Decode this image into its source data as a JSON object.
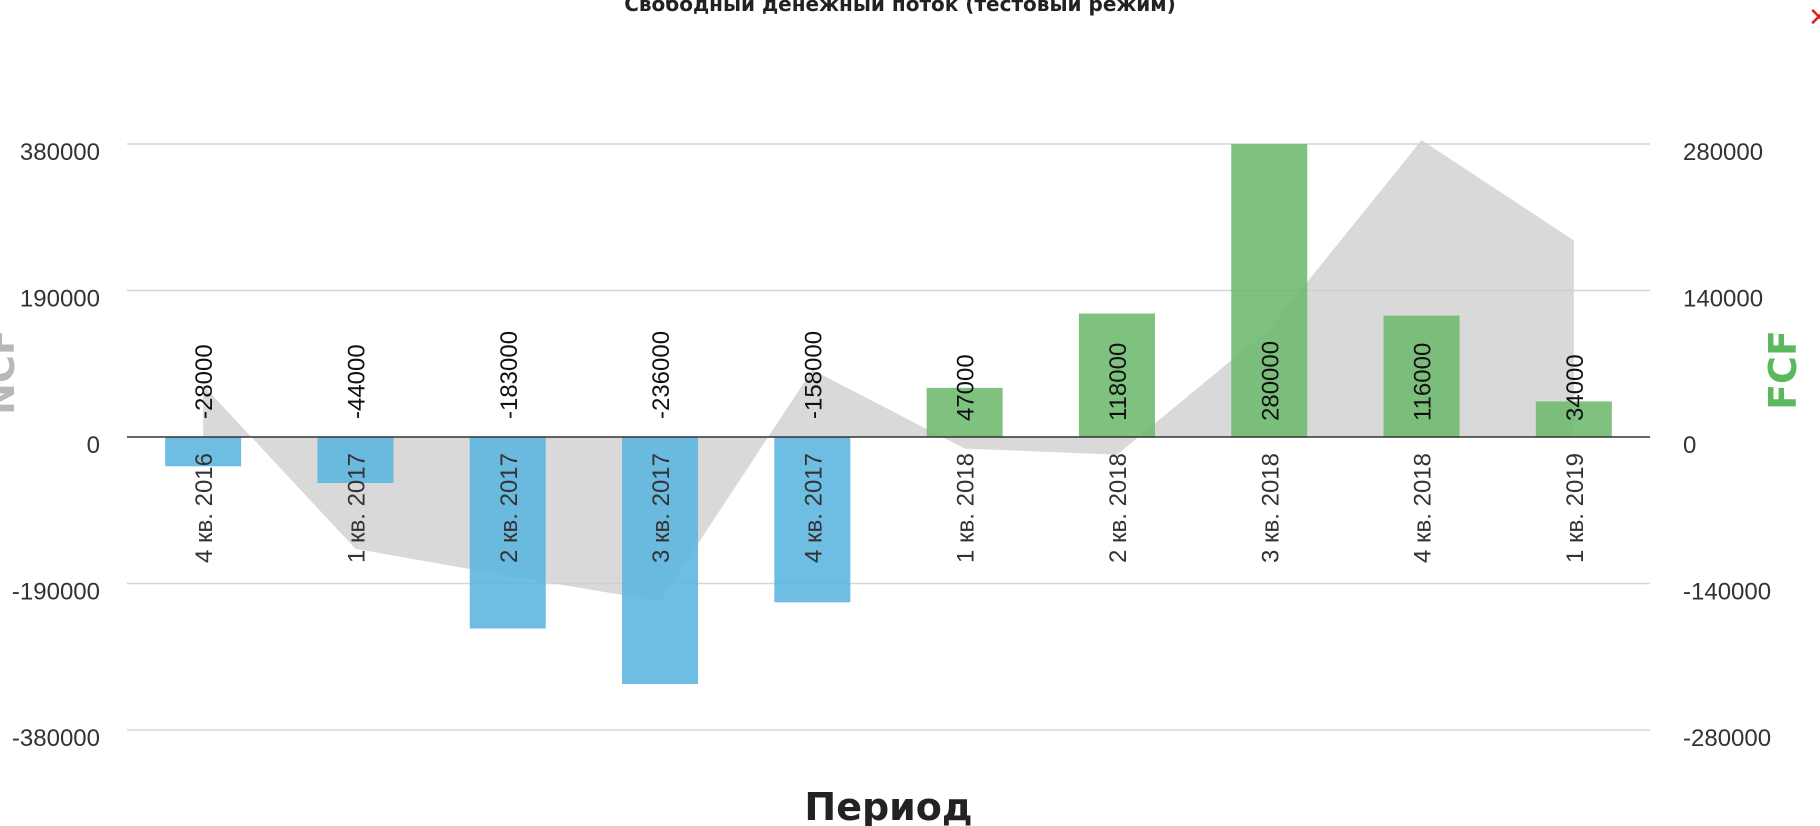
{
  "title": "Свободный денежный поток (тестовый режим)",
  "close_icon": "close-icon",
  "chart_data": {
    "type": "bar",
    "title": "Свободный денежный поток (тестовый режим)",
    "xlabel": "Период",
    "ylabel_left": "NCF",
    "ylabel_right": "FCF",
    "categories": [
      "4 кв. 2016",
      "1 кв. 2017",
      "2 кв. 2017",
      "3 кв. 2017",
      "4 кв. 2017",
      "1 кв. 2018",
      "2 кв. 2018",
      "3 кв. 2018",
      "4 кв. 2018",
      "1 кв. 2019"
    ],
    "left_ticks": [
      "380000",
      "190000",
      "0",
      "-190000",
      "-380000"
    ],
    "right_ticks": [
      "280000",
      "140000",
      "0",
      "-140000",
      "-280000"
    ],
    "ylim_left": [
      -380000,
      380000
    ],
    "ylim_right": [
      -280000,
      280000
    ],
    "series": [
      {
        "type": "bar",
        "axis": "right",
        "values": [
          -28000,
          -44000,
          -183000,
          -236000,
          -158000,
          47000,
          118000,
          280000,
          116000,
          34000
        ],
        "labels": [
          "-28000",
          "-44000",
          "-183000",
          "-236000",
          "-158000",
          "47000",
          "118000",
          "280000",
          "116000",
          "34000"
        ]
      },
      {
        "type": "area",
        "axis": "left",
        "values": [
          67000,
          -145000,
          -180000,
          -213000,
          87000,
          -15000,
          -23000,
          140000,
          385000,
          255000
        ]
      }
    ],
    "colors": {
      "negative": "#5ab4de",
      "positive": "#6db86d",
      "area": "#cccccc",
      "fcf_label": "#5cb85c",
      "ncf_label": "#b8b8b8"
    },
    "grid": true
  }
}
